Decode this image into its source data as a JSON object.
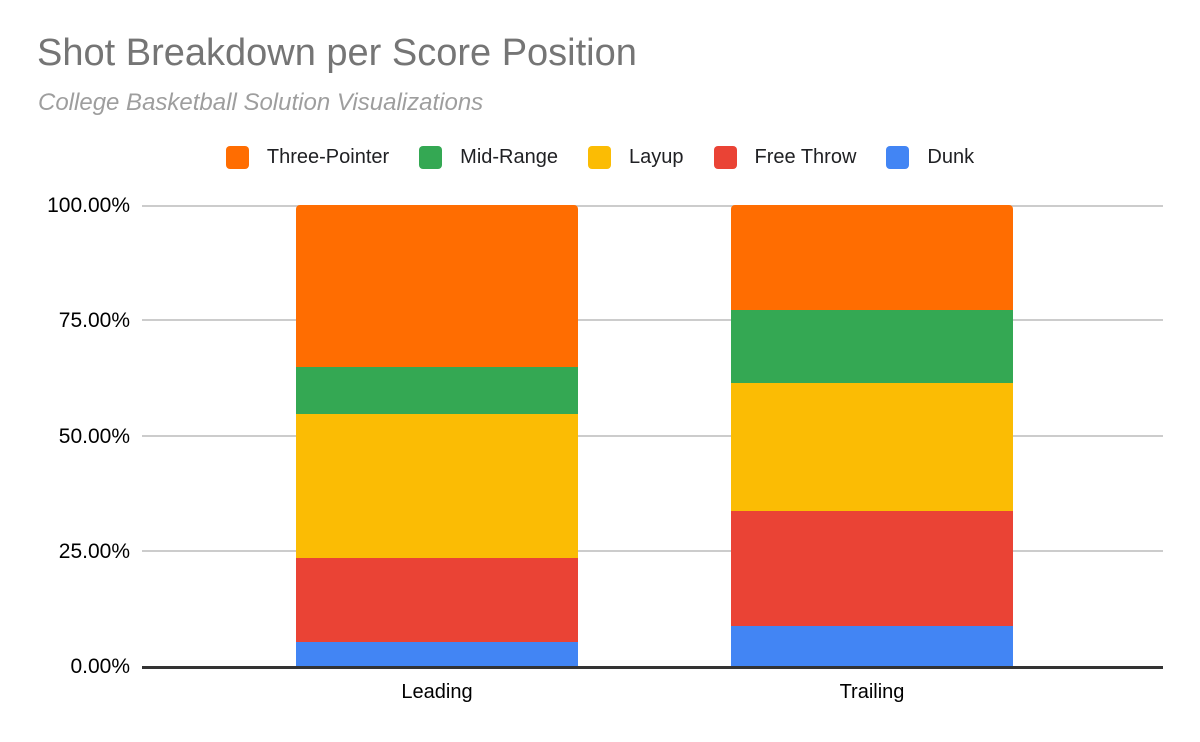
{
  "chart_data": {
    "type": "bar",
    "stacked": true,
    "percent": true,
    "title": "Shot Breakdown per Score Position",
    "subtitle": "College Basketball Solution Visualizations",
    "title_color": "#757575",
    "subtitle_color": "#9e9e9e",
    "categories": [
      "Leading",
      "Trailing"
    ],
    "series": [
      {
        "name": "Dunk",
        "color": "#4285F4",
        "values": [
          5.2,
          8.6
        ]
      },
      {
        "name": "Free Throw",
        "color": "#EA4335",
        "values": [
          18.2,
          25.0
        ]
      },
      {
        "name": "Layup",
        "color": "#FBBC04",
        "values": [
          31.2,
          27.8
        ]
      },
      {
        "name": "Mid-Range",
        "color": "#34A853",
        "values": [
          10.3,
          15.8
        ]
      },
      {
        "name": "Three-Pointer",
        "color": "#FF6D01",
        "values": [
          35.1,
          22.8
        ]
      }
    ],
    "stack_order": "bottom-to-top",
    "legend": {
      "position": "top",
      "order": [
        "Three-Pointer",
        "Mid-Range",
        "Layup",
        "Free Throw",
        "Dunk"
      ]
    },
    "y_axis": {
      "min": 0,
      "max": 100,
      "ticks": [
        "0.00%",
        "25.00%",
        "50.00%",
        "75.00%",
        "100.00%"
      ]
    },
    "grid": true,
    "gridline_color": "#cccccc",
    "axis_line_color": "#333333"
  }
}
